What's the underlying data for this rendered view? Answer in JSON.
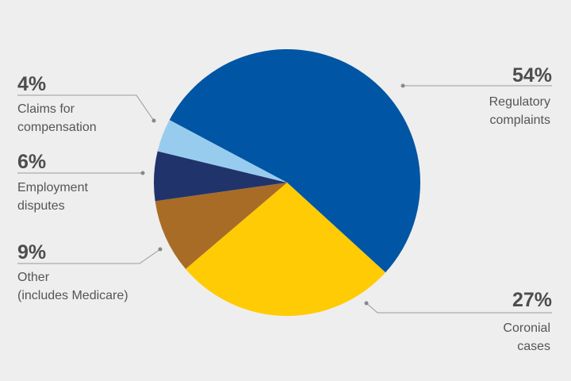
{
  "chart_data": {
    "type": "pie",
    "title": "",
    "slices": [
      {
        "pct_label": "54%",
        "value": 54,
        "label_lines": [
          "Regulatory",
          "complaints"
        ],
        "color": "#0055a4"
      },
      {
        "pct_label": "27%",
        "value": 27,
        "label_lines": [
          "Coronial",
          "cases"
        ],
        "color": "#ffcb05"
      },
      {
        "pct_label": "9%",
        "value": 9,
        "label_lines": [
          "Other",
          "(includes Medicare)"
        ],
        "color": "#a86c27"
      },
      {
        "pct_label": "6%",
        "value": 6,
        "label_lines": [
          "Employment",
          "disputes"
        ],
        "color": "#20346b"
      },
      {
        "pct_label": "4%",
        "value": 4,
        "label_lines": [
          "Claims for",
          "compensation"
        ],
        "color": "#98ccee"
      }
    ]
  }
}
